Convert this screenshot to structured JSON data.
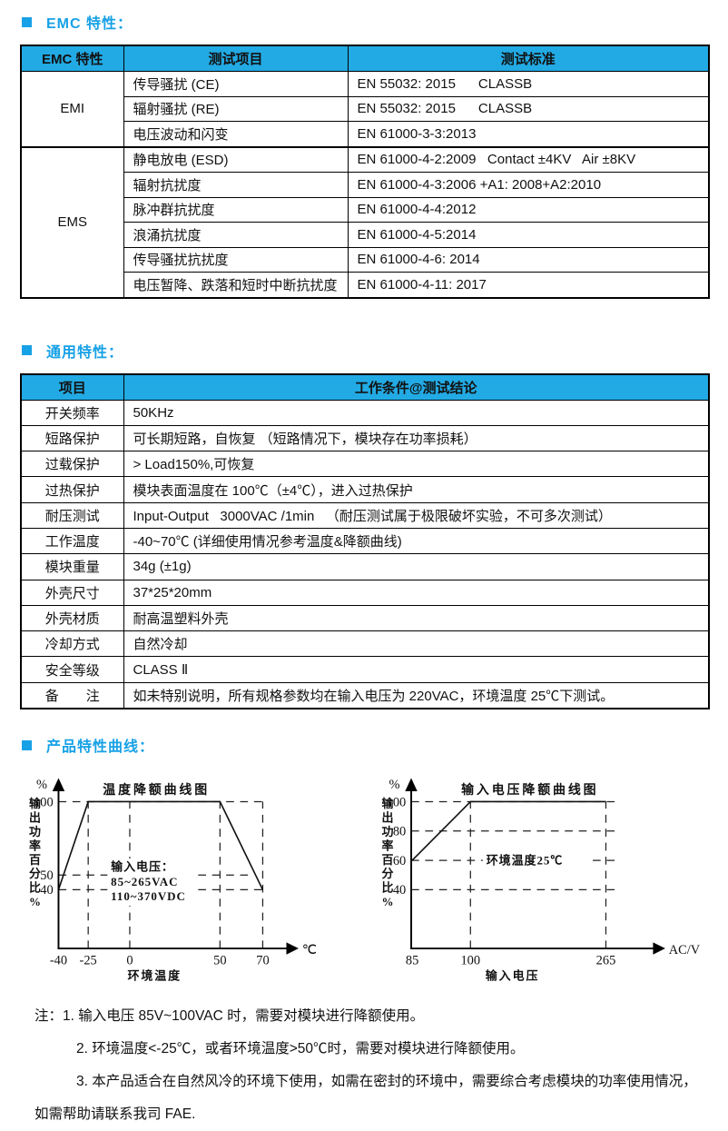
{
  "colors": {
    "accent_blue": "#17A1E6",
    "table_header_bg": "#22AAE4",
    "border": "#000000",
    "page_bg": "#ffffff"
  },
  "sections": {
    "emc": {
      "title": "EMC 特性："
    },
    "general": {
      "title": "通用特性："
    },
    "curves": {
      "title": "产品特性曲线："
    }
  },
  "emc_table": {
    "headers": [
      "EMC 特性",
      "测试项目",
      "测试标准"
    ],
    "groups": [
      {
        "name": "EMI",
        "rows": [
          [
            "传导骚扰 (CE)",
            "EN 55032: 2015      CLASSB"
          ],
          [
            "辐射骚扰 (RE)",
            "EN 55032: 2015      CLASSB"
          ],
          [
            "电压波动和闪变",
            "EN 61000-3-3:2013"
          ]
        ]
      },
      {
        "name": "EMS",
        "rows": [
          [
            "静电放电 (ESD)",
            "EN 61000-4-2:2009   Contact ±4KV   Air ±8KV"
          ],
          [
            "辐射抗扰度",
            "EN 61000-4-3:2006 +A1: 2008+A2:2010"
          ],
          [
            "脉冲群抗扰度",
            "EN 61000-4-4:2012"
          ],
          [
            "浪涌抗扰度",
            "EN 61000-4-5:2014"
          ],
          [
            "传导骚扰抗扰度",
            "EN 61000-4-6: 2014"
          ],
          [
            "电压暂降、跌落和短时中断抗扰度",
            "EN 61000-4-11: 2017"
          ]
        ]
      }
    ]
  },
  "general_table": {
    "headers": [
      "项目",
      "工作条件@测试结论"
    ],
    "rows": [
      [
        "开关频率",
        "50KHz"
      ],
      [
        "短路保护",
        "可长期短路，自恢复 （短路情况下，模块存在功率损耗）"
      ],
      [
        "过载保护",
        "> Load150%,可恢复"
      ],
      [
        "过热保护",
        "模块表面温度在 100℃（±4℃），进入过热保护"
      ],
      [
        "耐压测试",
        "Input-Output   3000VAC /1min   （耐压测试属于极限破坏实验，不可多次测试）"
      ],
      [
        "工作温度",
        "-40~70℃ (详细使用情况参考温度&降额曲线)"
      ],
      [
        "模块重量",
        "34g (±1g)"
      ],
      [
        "外壳尺寸",
        "37*25*20mm"
      ],
      [
        "外壳材质",
        "耐高温塑料外壳"
      ],
      [
        "冷却方式",
        "自然冷却"
      ],
      [
        "安全等级",
        "CLASS Ⅱ"
      ],
      [
        "备　　注",
        "如未特别说明，所有规格参数均在输入电压为 220VAC，环境温度 25℃下测试。"
      ]
    ]
  },
  "chart_data": [
    {
      "type": "line",
      "title": "温度降额曲线图",
      "xlabel": "环境温度",
      "x_unit": "℃",
      "ylabel": "输出功率百分比%",
      "y_unit": "%",
      "x_ticks": [
        -40,
        -25,
        0,
        50,
        70
      ],
      "x_tick_pos": [
        0,
        0.125,
        0.3,
        0.68,
        0.86
      ],
      "y_ticks": [
        100,
        50,
        40
      ],
      "xlim": [
        -40,
        80
      ],
      "ylim": [
        0,
        120
      ],
      "grid": "dashed",
      "line": [
        [
          -40,
          40
        ],
        [
          -25,
          100
        ],
        [
          50,
          100
        ],
        [
          70,
          40
        ]
      ],
      "h_dash": [
        [
          100,
          0.88
        ],
        [
          50,
          0.8
        ],
        [
          40,
          0.86
        ]
      ],
      "v_dash": [
        [
          -25,
          100
        ],
        [
          0,
          100
        ],
        [
          50,
          100
        ],
        [
          70,
          100
        ]
      ],
      "annotation": [
        "输入电压：",
        "85~265VAC",
        "110~370VDC"
      ]
    },
    {
      "type": "line",
      "title": "输入电压降额曲线图",
      "xlabel": "输入电压",
      "x_unit": "AC/V",
      "ylabel": "输出功率百分比%",
      "y_unit": "%",
      "x_ticks": [
        85,
        100,
        265
      ],
      "x_tick_pos": [
        0.004,
        0.245,
        0.805
      ],
      "y_ticks": [
        100,
        80,
        60,
        40
      ],
      "xlim": [
        85,
        290
      ],
      "ylim": [
        0,
        120
      ],
      "grid": "dashed",
      "line": [
        [
          85,
          60
        ],
        [
          100,
          100
        ],
        [
          265,
          100
        ]
      ],
      "h_dash": [
        [
          100,
          0.85
        ],
        [
          80,
          0.85
        ],
        [
          60,
          0.85
        ],
        [
          40,
          0.85
        ]
      ],
      "v_dash": [
        [
          100,
          100
        ],
        [
          265,
          100
        ]
      ],
      "annotation": [
        "环境温度25℃"
      ]
    }
  ],
  "notes": {
    "label": "注：",
    "line1": "1. 输入电压 85V~100VAC 时，需要对模块进行降额使用。",
    "line2": "2. 环境温度<-25℃，或者环境温度>50℃时，需要对模块进行降额使用。",
    "line3": "3. 本产品适合在自然风冷的环境下使用，如需在密封的环境中，需要综合考虑模块的功率使用情况，",
    "line4": "如需帮助请联系我司 FAE."
  }
}
